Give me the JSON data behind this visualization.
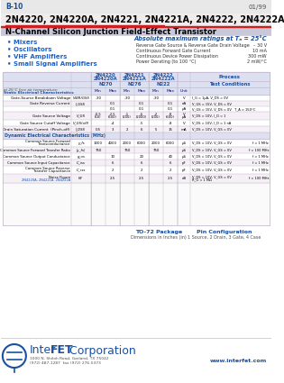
{
  "page_bg": "#ffffff",
  "header_left": "B-10",
  "header_right": "01/99",
  "title_part": "2N4220, 2N4220A, 2N4221, 2N4221A, 2N4222, 2N4222A",
  "title_sub": "N-Channel Silicon Junction Field-Effect Transistor",
  "bullet_items": [
    "Mixers",
    "Oscillators",
    "VHF Amplifiers",
    "Small Signal Amplifiers"
  ],
  "bullet_color": "#2060c0",
  "abs_title": "Absolute maximum ratings at Tₐ = 25°C",
  "abs_items": [
    [
      "Reverse Gate Source & Reverse Gate Drain Voltage",
      "– 30 V"
    ],
    [
      "Continuous Forward Gate Current",
      "10 mA"
    ],
    [
      "Continuous Device Power Dissipation",
      "300 mW"
    ],
    [
      "Power Derating (to 100 °C)",
      "2 mW/°C"
    ]
  ],
  "table_header_bg": "#dde0f0",
  "table_border": "#c0b0c8",
  "row_bg1": "#ffffff",
  "row_bg2": "#f5f0f5",
  "interfet_color": "#1a50a0",
  "red_line": "#cc2020",
  "header_bg": "#e8e8e8",
  "title_bg": "#f0ecec",
  "subtitle_bg": "#c8c8d8",
  "footer_pkg": "TO-72 Package",
  "footer_pkg2": "Dimensions in Inches (in)",
  "footer_pin": "Pin Configuration",
  "footer_pin2": "1 Source, 2 Drain, 3 Gate, 4 Case",
  "company_name1": "Inter",
  "company_name2": "FET",
  "company_name3": " Corporation",
  "company_addr1": "1000 N. Shiloh Road, Garland, TX 75042",
  "company_addr2": "(972) 487-1287  fax (972) 276-5373",
  "website": "www.interfet.com"
}
